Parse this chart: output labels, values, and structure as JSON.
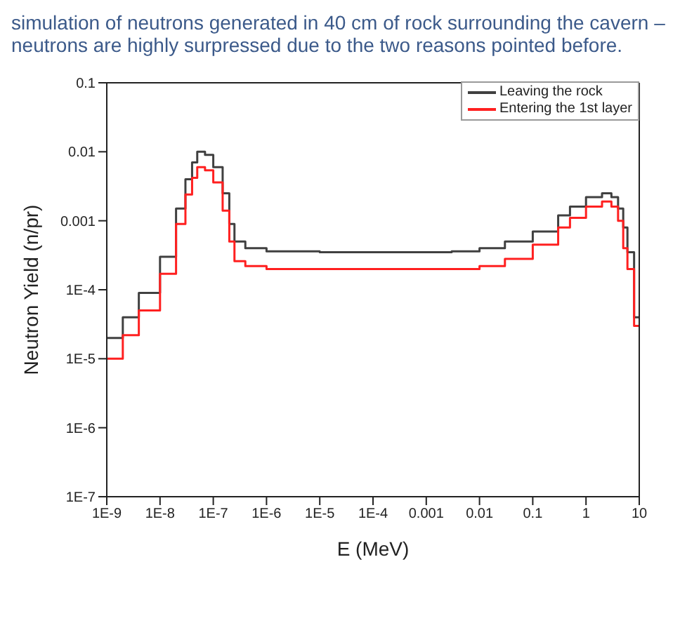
{
  "chart_data": {
    "type": "step",
    "title": "simulation of neutrons generated in 40 cm of rock surrounding the cavern – neutrons are highly surpressed due to the two reasons pointed before.",
    "xlabel": "E (MeV)",
    "ylabel": "Neutron Yield (n/pr)",
    "log": "xy",
    "grid": false,
    "legend": "top right",
    "marker": "none",
    "line_style": "solid",
    "x": [
      1e-09,
      2e-09,
      4e-09,
      1e-08,
      2e-08,
      3e-08,
      4e-08,
      5e-08,
      7e-08,
      1e-07,
      1.5e-07,
      2e-07,
      2.5e-07,
      4e-07,
      1e-06,
      1e-05,
      0.0001,
      0.001,
      0.003,
      0.01,
      0.03,
      0.1,
      0.3,
      0.5,
      1,
      2,
      3,
      4,
      5,
      6,
      8,
      10
    ],
    "series": [
      {
        "name": "Leaving the rock",
        "color": "#404040",
        "values": [
          2e-05,
          4e-05,
          9e-05,
          0.0003,
          0.0015,
          0.004,
          0.007,
          0.01,
          0.009,
          0.006,
          0.0025,
          0.0009,
          0.0005,
          0.0004,
          0.00036,
          0.00035,
          0.00035,
          0.00035,
          0.00036,
          0.0004,
          0.0005,
          0.0007,
          0.0012,
          0.0016,
          0.0022,
          0.0025,
          0.0022,
          0.0015,
          0.0008,
          0.00035,
          4e-05,
          4e-05
        ]
      },
      {
        "name": "Entering the 1st layer",
        "color": "#ff2020",
        "values": [
          1e-05,
          2.2e-05,
          5e-05,
          0.00017,
          0.0009,
          0.0024,
          0.0042,
          0.006,
          0.0054,
          0.0036,
          0.0014,
          0.0005,
          0.00026,
          0.00022,
          0.0002,
          0.0002,
          0.0002,
          0.0002,
          0.0002,
          0.00022,
          0.00028,
          0.00045,
          0.0008,
          0.0011,
          0.0016,
          0.0019,
          0.0016,
          0.001,
          0.0004,
          0.0002,
          3e-05,
          3e-05
        ]
      }
    ],
    "xlim": [
      1e-09,
      10
    ],
    "xticks": [
      {
        "value": 1e-09,
        "label": "1E-9"
      },
      {
        "value": 1e-08,
        "label": "1E-8"
      },
      {
        "value": 1e-07,
        "label": "1E-7"
      },
      {
        "value": 1e-06,
        "label": "1E-6"
      },
      {
        "value": 1e-05,
        "label": "1E-5"
      },
      {
        "value": 0.0001,
        "label": "1E-4"
      },
      0.001,
      0.01,
      0.1,
      1,
      10
    ],
    "ylim": [
      1e-07,
      0.1
    ],
    "yticks": [
      {
        "value": 1e-07,
        "label": "1E-7"
      },
      {
        "value": 1e-06,
        "label": "1E-6"
      },
      {
        "value": 1e-05,
        "label": "1E-5"
      },
      {
        "value": 0.0001,
        "label": "1E-4"
      },
      0.001,
      0.01,
      0.1
    ]
  }
}
